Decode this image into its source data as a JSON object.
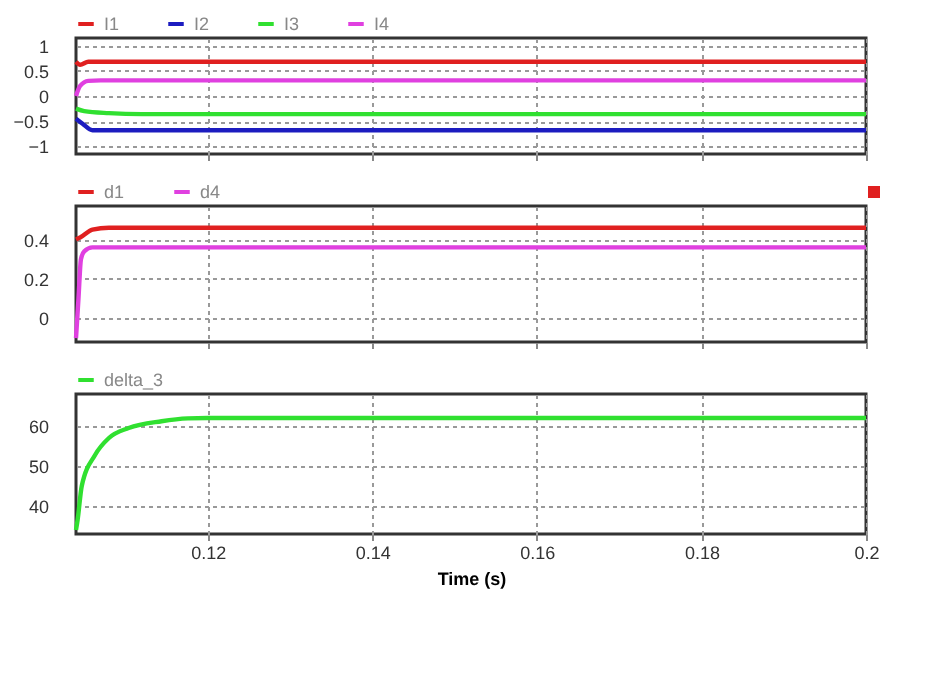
{
  "chart_data": [
    {
      "type": "line",
      "xlim": [
        0.104,
        0.2
      ],
      "xticks": [
        0.12,
        0.14,
        0.16,
        0.18,
        0.2
      ],
      "ylim": [
        -1.15,
        1.15
      ],
      "yticks": [
        -1,
        -0.5,
        0,
        0.5,
        1
      ],
      "grid": true,
      "legend": "top left",
      "tick_labels": "y",
      "series": [
        {
          "name": "I1",
          "color": "#e02020",
          "x": [
            0.104,
            0.1045,
            0.1055,
            0.107,
            0.2
          ],
          "values": [
            0.68,
            0.62,
            0.68,
            0.68,
            0.68
          ]
        },
        {
          "name": "I2",
          "color": "#1c1cc0",
          "x": [
            0.104,
            0.1048,
            0.106,
            0.2
          ],
          "values": [
            -0.45,
            -0.55,
            -0.68,
            -0.68
          ]
        },
        {
          "name": "I3",
          "color": "#30e030",
          "x": [
            0.104,
            0.105,
            0.108,
            0.112,
            0.2
          ],
          "values": [
            -0.25,
            -0.3,
            -0.34,
            -0.36,
            -0.36
          ]
        },
        {
          "name": "I4",
          "color": "#e040e0",
          "x": [
            0.104,
            0.1045,
            0.1055,
            0.107,
            0.2
          ],
          "values": [
            0,
            0.2,
            0.3,
            0.31,
            0.31
          ]
        }
      ]
    },
    {
      "type": "line",
      "xlim": [
        0.104,
        0.2
      ],
      "xticks": [
        0.12,
        0.14,
        0.16,
        0.18,
        0.2
      ],
      "ylim": [
        -0.12,
        0.57
      ],
      "yticks": [
        0,
        0.2,
        0.4
      ],
      "grid": true,
      "legend": "top left",
      "tick_labels": "y",
      "series": [
        {
          "name": "d1",
          "color": "#e02020",
          "x": [
            0.104,
            0.1045,
            0.106,
            0.108,
            0.2
          ],
          "values": [
            0.4,
            0.41,
            0.45,
            0.46,
            0.46
          ]
        },
        {
          "name": "d4",
          "color": "#e040e0",
          "x": [
            0.104,
            0.1043,
            0.1046,
            0.105,
            0.106,
            0.2
          ],
          "values": [
            -0.1,
            0.1,
            0.3,
            0.34,
            0.36,
            0.36
          ]
        }
      ]
    },
    {
      "type": "line",
      "xlim": [
        0.104,
        0.2
      ],
      "xticks": [
        0.12,
        0.14,
        0.16,
        0.18,
        0.2
      ],
      "ylim": [
        33,
        68
      ],
      "yticks": [
        40,
        50,
        60
      ],
      "grid": true,
      "legend": "top left",
      "xlabel": "Time (s)",
      "series": [
        {
          "name": "delta_3",
          "color": "#30e030",
          "x": [
            0.104,
            0.1042,
            0.1047,
            0.1063,
            0.108,
            0.1104,
            0.1144,
            0.1176,
            0.12,
            0.2
          ],
          "values": [
            34,
            36.6,
            45,
            52.7,
            57,
            59.5,
            61.2,
            61.9,
            62,
            62
          ]
        }
      ]
    }
  ]
}
